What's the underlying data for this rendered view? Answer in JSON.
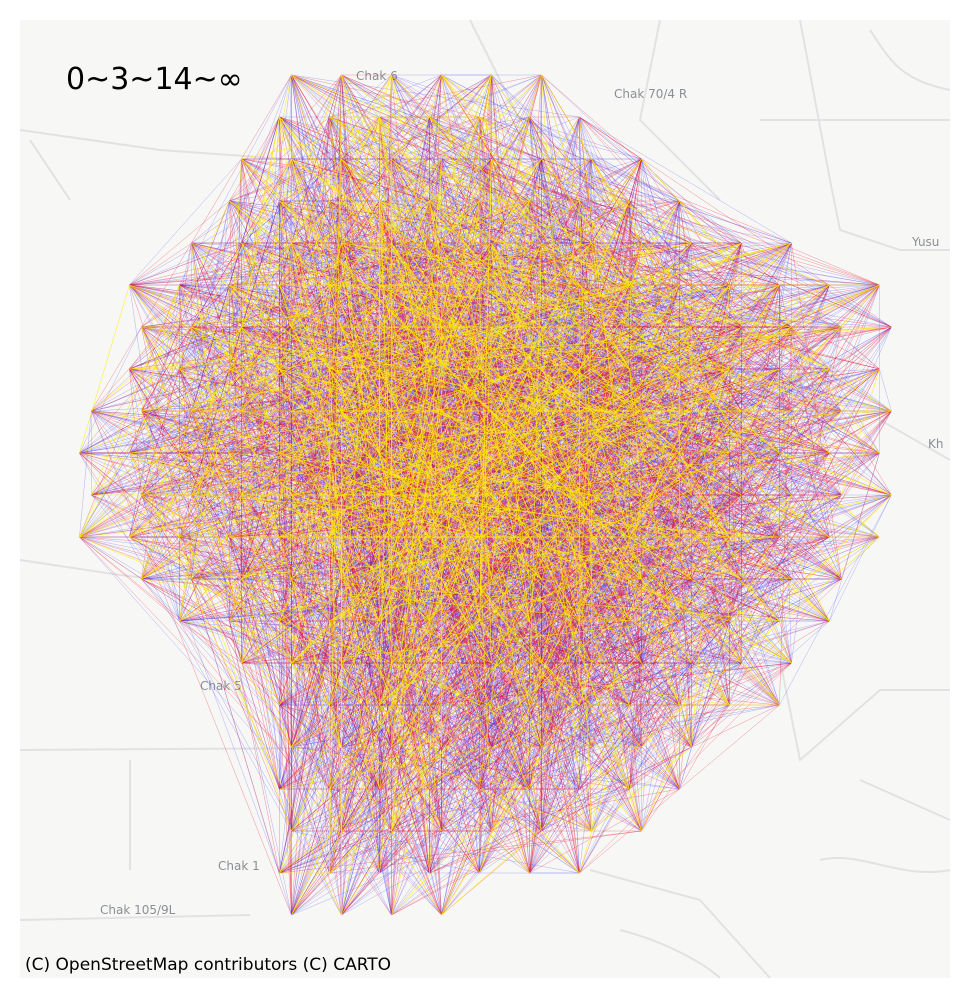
{
  "legend": {
    "title": "0~3~14~∞"
  },
  "attribution": "(C) OpenStreetMap contributors (C) CARTO",
  "basemap": {
    "place_labels": [
      "Chak 70/4 R",
      "Yusu",
      "Kh",
      "Chak 105/9L",
      "Chak 6",
      "Chak 1",
      "Chak 5"
    ]
  },
  "flow_classes": [
    {
      "range": "0~3",
      "color": "#2a2aff"
    },
    {
      "range": "3~14",
      "color": "#e8102a"
    },
    {
      "range": "14~∞",
      "color": "#ffee00"
    }
  ],
  "colors": {
    "background": "#f7f7f5",
    "roads": "#e4e4e6",
    "frame": "#ffffff"
  }
}
